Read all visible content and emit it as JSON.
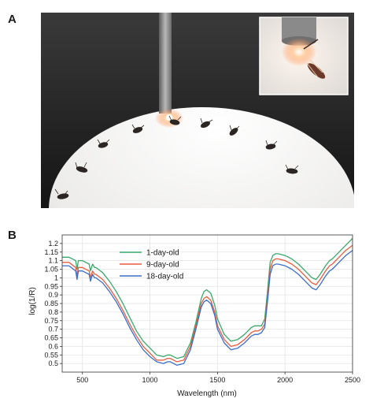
{
  "panel_a": {
    "label": "A"
  },
  "panel_b": {
    "label": "B"
  },
  "chart_data": {
    "type": "line",
    "xlabel": "Wavelength (nm)",
    "ylabel": "log(1/R)",
    "xlim": [
      350,
      2500
    ],
    "ylim": [
      0.45,
      1.25
    ],
    "xticks": [
      500,
      1000,
      1500,
      2000,
      2500
    ],
    "yticks": [
      0.5,
      0.55,
      0.6,
      0.65,
      0.7,
      0.75,
      0.8,
      0.85,
      0.9,
      0.95,
      1,
      1.05,
      1.1,
      1.15,
      1.2
    ],
    "grid": true,
    "legend_position": "top-left",
    "x": [
      350,
      400,
      450,
      460,
      470,
      500,
      550,
      560,
      575,
      590,
      600,
      650,
      700,
      750,
      800,
      850,
      900,
      950,
      1000,
      1050,
      1100,
      1130,
      1150,
      1175,
      1200,
      1250,
      1300,
      1340,
      1380,
      1400,
      1420,
      1450,
      1480,
      1500,
      1550,
      1600,
      1650,
      1700,
      1750,
      1775,
      1800,
      1825,
      1850,
      1870,
      1890,
      1910,
      1930,
      1950,
      2000,
      2050,
      2100,
      2150,
      2200,
      2230,
      2260,
      2300,
      2330,
      2350,
      2400,
      2450,
      2500
    ],
    "series": [
      {
        "name": "1-day-old",
        "color": "#3aa86b",
        "values": [
          1.12,
          1.12,
          1.1,
          1.05,
          1.1,
          1.1,
          1.08,
          1.04,
          1.08,
          1.06,
          1.06,
          1.03,
          0.98,
          0.92,
          0.85,
          0.77,
          0.69,
          0.63,
          0.59,
          0.55,
          0.54,
          0.55,
          0.55,
          0.54,
          0.53,
          0.54,
          0.62,
          0.74,
          0.88,
          0.92,
          0.93,
          0.91,
          0.84,
          0.76,
          0.67,
          0.63,
          0.64,
          0.67,
          0.71,
          0.72,
          0.72,
          0.72,
          0.76,
          0.92,
          1.09,
          1.13,
          1.14,
          1.14,
          1.13,
          1.11,
          1.08,
          1.04,
          1.0,
          0.99,
          1.02,
          1.07,
          1.1,
          1.11,
          1.15,
          1.19,
          1.23
        ]
      },
      {
        "name": "9-day-old",
        "color": "#e85c3f",
        "values": [
          1.09,
          1.09,
          1.06,
          1.01,
          1.06,
          1.06,
          1.04,
          1.0,
          1.04,
          1.02,
          1.02,
          0.99,
          0.94,
          0.88,
          0.81,
          0.73,
          0.66,
          0.6,
          0.56,
          0.52,
          0.52,
          0.53,
          0.53,
          0.52,
          0.51,
          0.52,
          0.6,
          0.72,
          0.85,
          0.88,
          0.89,
          0.87,
          0.8,
          0.72,
          0.64,
          0.6,
          0.61,
          0.64,
          0.68,
          0.69,
          0.69,
          0.7,
          0.73,
          0.88,
          1.05,
          1.1,
          1.11,
          1.11,
          1.1,
          1.08,
          1.05,
          1.01,
          0.97,
          0.96,
          0.99,
          1.04,
          1.07,
          1.08,
          1.12,
          1.16,
          1.19
        ]
      },
      {
        "name": "18-day-old",
        "color": "#3b6ec9",
        "values": [
          1.07,
          1.07,
          1.04,
          0.99,
          1.04,
          1.04,
          1.02,
          0.98,
          1.02,
          1.0,
          1.0,
          0.97,
          0.92,
          0.86,
          0.79,
          0.71,
          0.64,
          0.58,
          0.54,
          0.51,
          0.5,
          0.51,
          0.51,
          0.5,
          0.49,
          0.5,
          0.58,
          0.7,
          0.83,
          0.86,
          0.87,
          0.85,
          0.78,
          0.7,
          0.62,
          0.58,
          0.59,
          0.62,
          0.66,
          0.67,
          0.67,
          0.68,
          0.71,
          0.86,
          1.02,
          1.07,
          1.08,
          1.08,
          1.07,
          1.05,
          1.02,
          0.98,
          0.94,
          0.93,
          0.96,
          1.01,
          1.04,
          1.05,
          1.09,
          1.13,
          1.16
        ]
      }
    ]
  }
}
